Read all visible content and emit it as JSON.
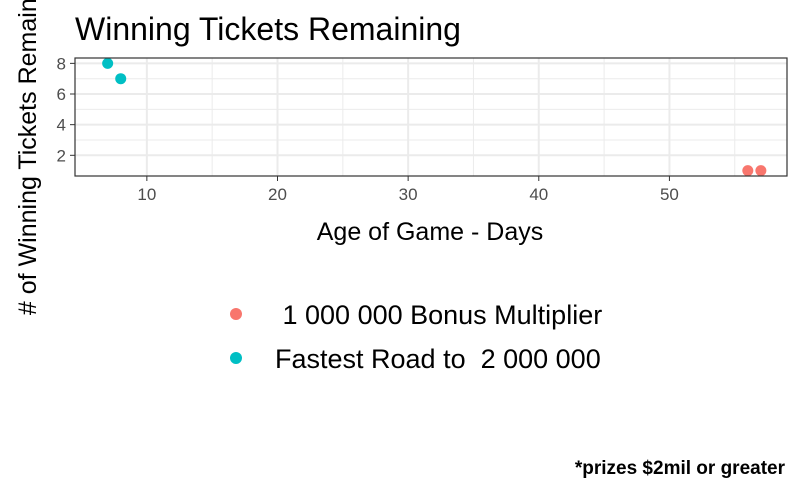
{
  "chart_data": {
    "type": "scatter",
    "title": "Winning Tickets Remaining",
    "xlabel": "Age of Game - Days",
    "ylabel": "# of Winning Tickets Remaining",
    "caption": "*prizes $2mil or greater",
    "xlim": [
      4.5,
      59
    ],
    "ylim": [
      0.65,
      8.35
    ],
    "x_ticks": [
      10,
      20,
      30,
      40,
      50
    ],
    "y_ticks": [
      2,
      4,
      6,
      8
    ],
    "grid": true,
    "legend_position": "bottom",
    "series": [
      {
        "name": " 1 000 000 Bonus Multiplier",
        "color": "#F8766D",
        "points": [
          {
            "x": 56,
            "y": 1
          },
          {
            "x": 57,
            "y": 1
          }
        ]
      },
      {
        "name": "Fastest Road to  2 000 000",
        "color": "#00BFC4",
        "points": [
          {
            "x": 7,
            "y": 8
          },
          {
            "x": 8,
            "y": 7
          }
        ]
      }
    ]
  }
}
